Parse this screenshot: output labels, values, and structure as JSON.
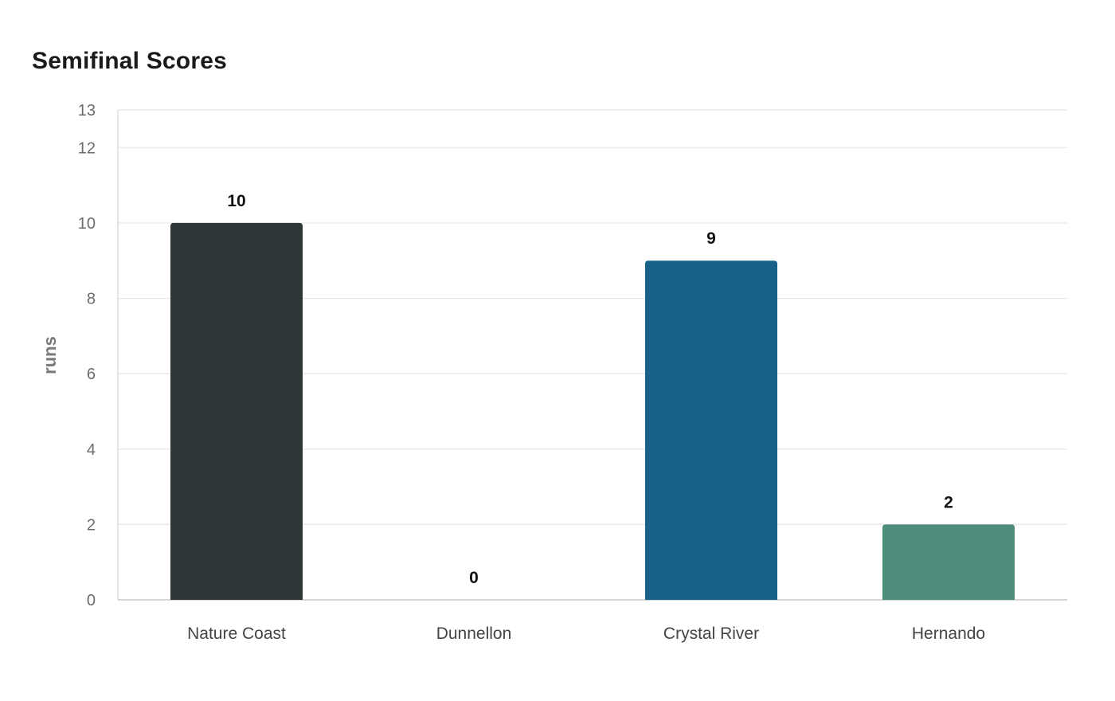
{
  "chart_data": {
    "type": "bar",
    "title": "Semifinal Scores",
    "ylabel": "runs",
    "xlabel": "",
    "categories": [
      "Nature Coast",
      "Dunnellon",
      "Crystal River",
      "Hernando"
    ],
    "values": [
      10,
      0,
      9,
      2
    ],
    "colors": [
      "#2e3638",
      "#2e3638",
      "#186188",
      "#4e8c7b"
    ],
    "yticks": [
      0,
      2,
      4,
      6,
      8,
      10,
      12,
      13
    ],
    "ylim": [
      0,
      13
    ],
    "grid": true,
    "legend": "none"
  }
}
